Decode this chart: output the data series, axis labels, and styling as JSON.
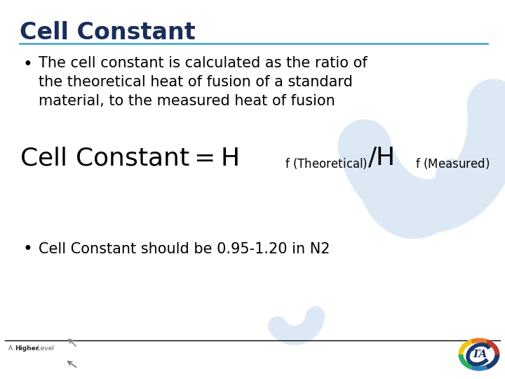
{
  "title": "Cell Constant",
  "title_color": "#1a2e5a",
  "title_fontsize": 24,
  "bullet1_line1": "The cell constant is calculated as the ratio of",
  "bullet1_line2": "the theoretical heat of fusion of a standard",
  "bullet1_line3": "material, to the measured heat of fusion",
  "bullet2": "Cell Constant should be 0.95-1.20 in N2",
  "bullet_color": "#000000",
  "bullet_fontsize": 15,
  "formula_fontsize": 26,
  "formula_sub_fontsize": 12,
  "line_color": "#4bacc6",
  "background_color": "#ffffff",
  "watermark_color": "#dce9f5",
  "footer_line_color": "#000000",
  "footer_text_color": "#555555",
  "footer_bold_color": "#222222"
}
